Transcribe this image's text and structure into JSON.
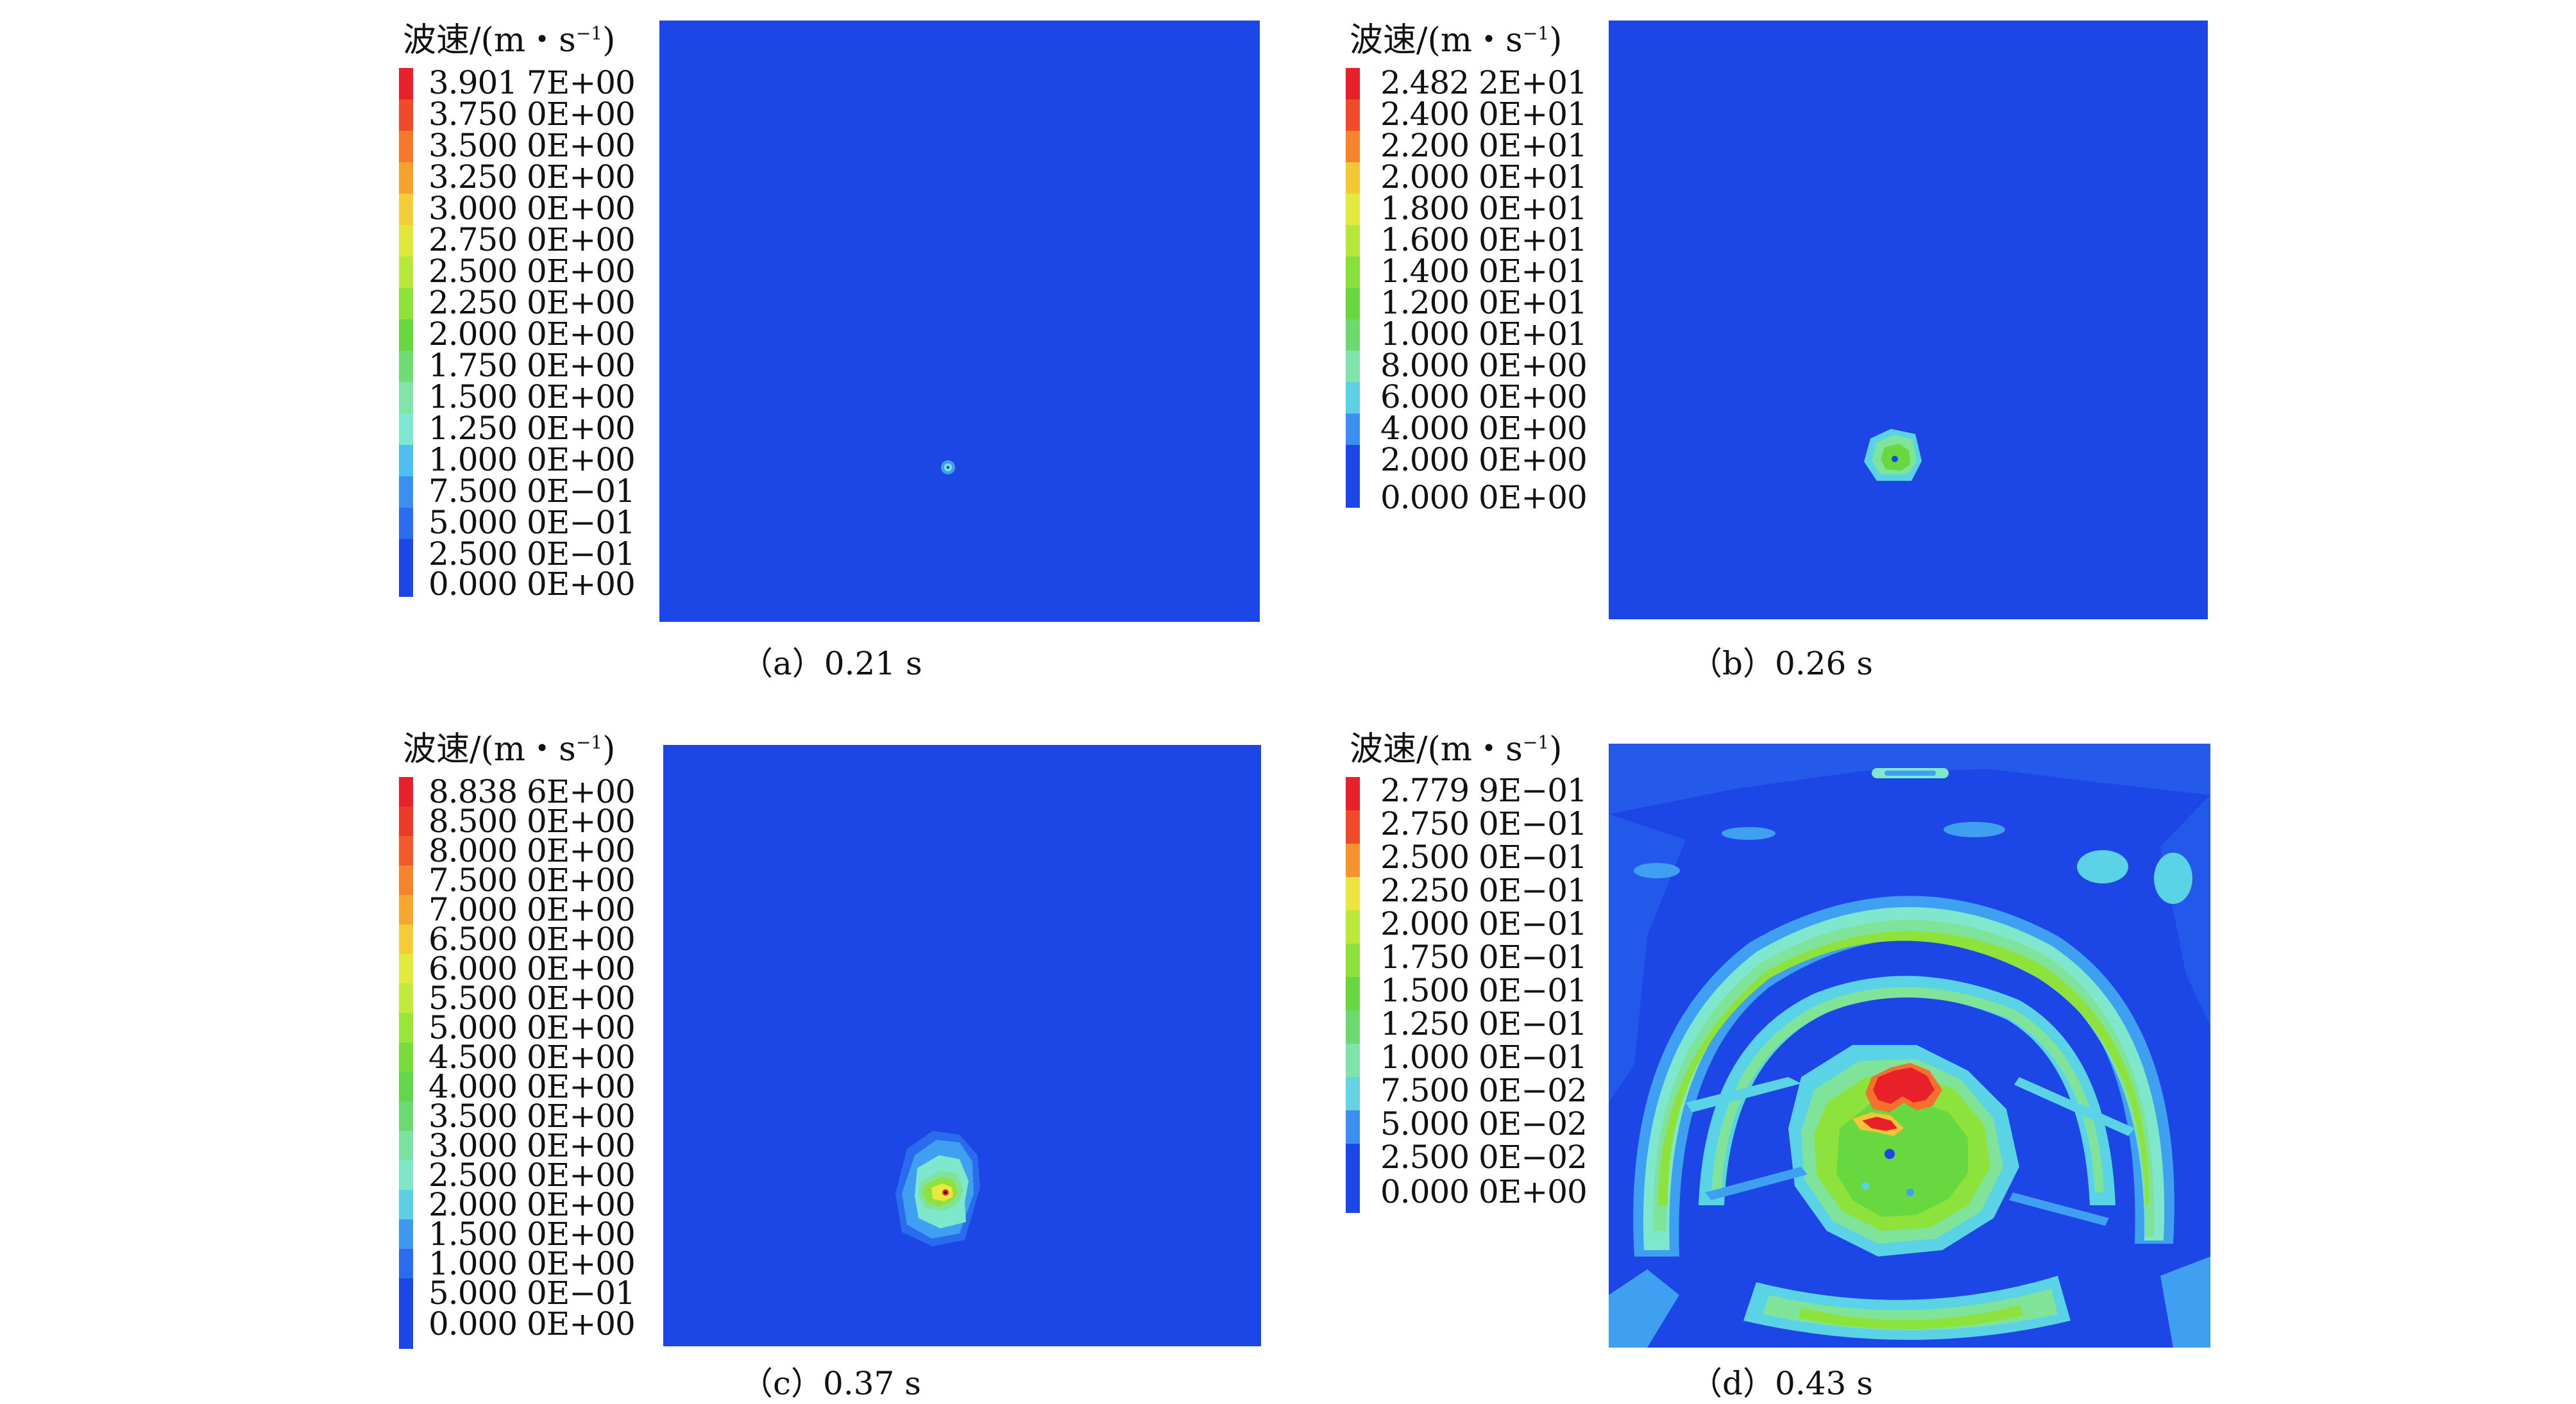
{
  "panels": [
    {
      "id": "a",
      "legend_title": "波速/(m・s",
      "legend_exp": "−1",
      "legend_close": ")",
      "ticks": [
        "3.901 7E+00",
        "3.750 0E+00",
        "3.500 0E+00",
        "3.250 0E+00",
        "3.000 0E+00",
        "2.750 0E+00",
        "2.500 0E+00",
        "2.250 0E+00",
        "2.000 0E+00",
        "1.750 0E+00",
        "1.500 0E+00",
        "1.250 0E+00",
        "1.000 0E+00",
        "7.500 0E−01",
        "5.000 0E−01",
        "2.500 0E−01",
        "0.000 0E+00"
      ],
      "caption": "（a）0.21 s"
    },
    {
      "id": "b",
      "legend_title": "波速/(m・s",
      "legend_exp": "−1",
      "legend_close": ")",
      "ticks": [
        "2.482 2E+01",
        "2.400 0E+01",
        "2.200 0E+01",
        "2.000 0E+01",
        "1.800 0E+01",
        "1.600 0E+01",
        "1.400 0E+01",
        "1.200 0E+01",
        "1.000 0E+01",
        "8.000 0E+00",
        "6.000 0E+00",
        "4.000 0E+00",
        "2.000 0E+00",
        "0.000 0E+00"
      ],
      "caption": "（b）0.26 s"
    },
    {
      "id": "c",
      "legend_title": "波速/(m・s",
      "legend_exp": "−1",
      "legend_close": ")",
      "ticks": [
        "8.838 6E+00",
        "8.500 0E+00",
        "8.000 0E+00",
        "7.500 0E+00",
        "7.000 0E+00",
        "6.500 0E+00",
        "6.000 0E+00",
        "5.500 0E+00",
        "5.000 0E+00",
        "4.500 0E+00",
        "4.000 0E+00",
        "3.500 0E+00",
        "3.000 0E+00",
        "2.500 0E+00",
        "2.000 0E+00",
        "1.500 0E+00",
        "1.000 0E+00",
        "5.000 0E−01",
        "0.000 0E+00"
      ],
      "caption": "（c）0.37 s"
    },
    {
      "id": "d",
      "legend_title": "波速/(m・s",
      "legend_exp": "−1",
      "legend_close": ")",
      "ticks": [
        "2.779 9E−01",
        "2.750 0E−01",
        "2.500 0E−01",
        "2.250 0E−01",
        "2.000 0E−01",
        "1.750 0E−01",
        "1.500 0E−01",
        "1.250 0E−01",
        "1.000 0E−01",
        "7.500 0E−02",
        "5.000 0E−02",
        "2.500 0E−02",
        "0.000 0E+00"
      ],
      "caption": "（d）0.43 s"
    }
  ],
  "colors": {
    "field_background": "#1c46e6",
    "scale": [
      "#e8202a",
      "#f0432a",
      "#f5702c",
      "#f59a2e",
      "#f8c435",
      "#e9e83b",
      "#b9ea3a",
      "#8de23b",
      "#67d83f",
      "#6edb6c",
      "#7fe39a",
      "#7fe7cc",
      "#5bd3e6",
      "#3f9ff0",
      "#2f7cf0",
      "#2259ea",
      "#1c46e6"
    ]
  }
}
